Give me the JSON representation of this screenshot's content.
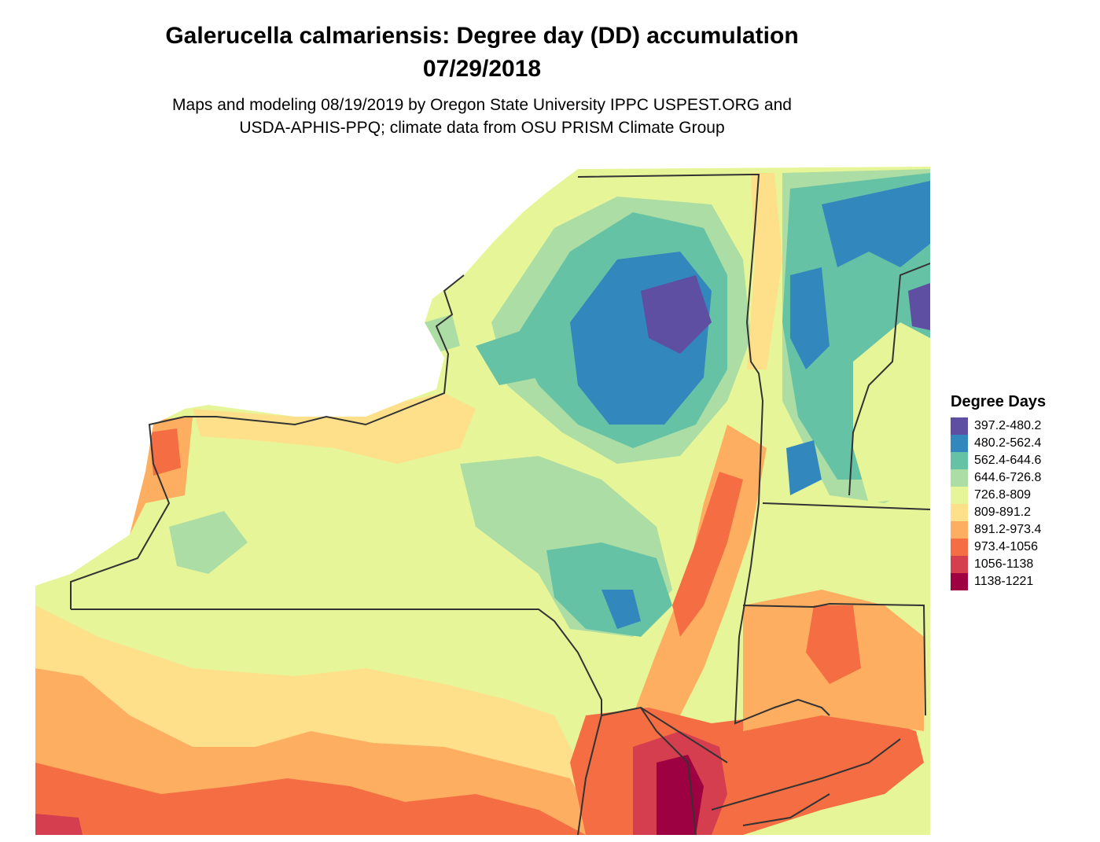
{
  "header": {
    "title_line1": "Galerucella calmariensis: Degree day (DD) accumulation",
    "title_line2": "07/29/2018",
    "subtitle_line1": "Maps and modeling 08/19/2019 by Oregon State University IPPC USPEST.ORG and",
    "subtitle_line2": "USDA-APHIS-PPQ; climate data from OSU PRISM Climate Group"
  },
  "legend": {
    "title": "Degree Days",
    "items": [
      {
        "label": "397.2-480.2",
        "color": "#5e4fa2"
      },
      {
        "label": "480.2-562.4",
        "color": "#3288bd"
      },
      {
        "label": "562.4-644.6",
        "color": "#66c2a5"
      },
      {
        "label": "644.6-726.8",
        "color": "#abdda4"
      },
      {
        "label": "726.8-809",
        "color": "#e6f598"
      },
      {
        "label": "809-891.2",
        "color": "#fee08b"
      },
      {
        "label": "891.2-973.4",
        "color": "#fdae61"
      },
      {
        "label": "973.4-1056",
        "color": "#f46d43"
      },
      {
        "label": "1056-1138",
        "color": "#d53e4f"
      },
      {
        "label": "1138-1221",
        "color": "#9e0142"
      }
    ]
  },
  "map": {
    "region": "New York and surrounding northeastern states",
    "background_color": "#e6f598",
    "boundary_color": "#333333"
  }
}
